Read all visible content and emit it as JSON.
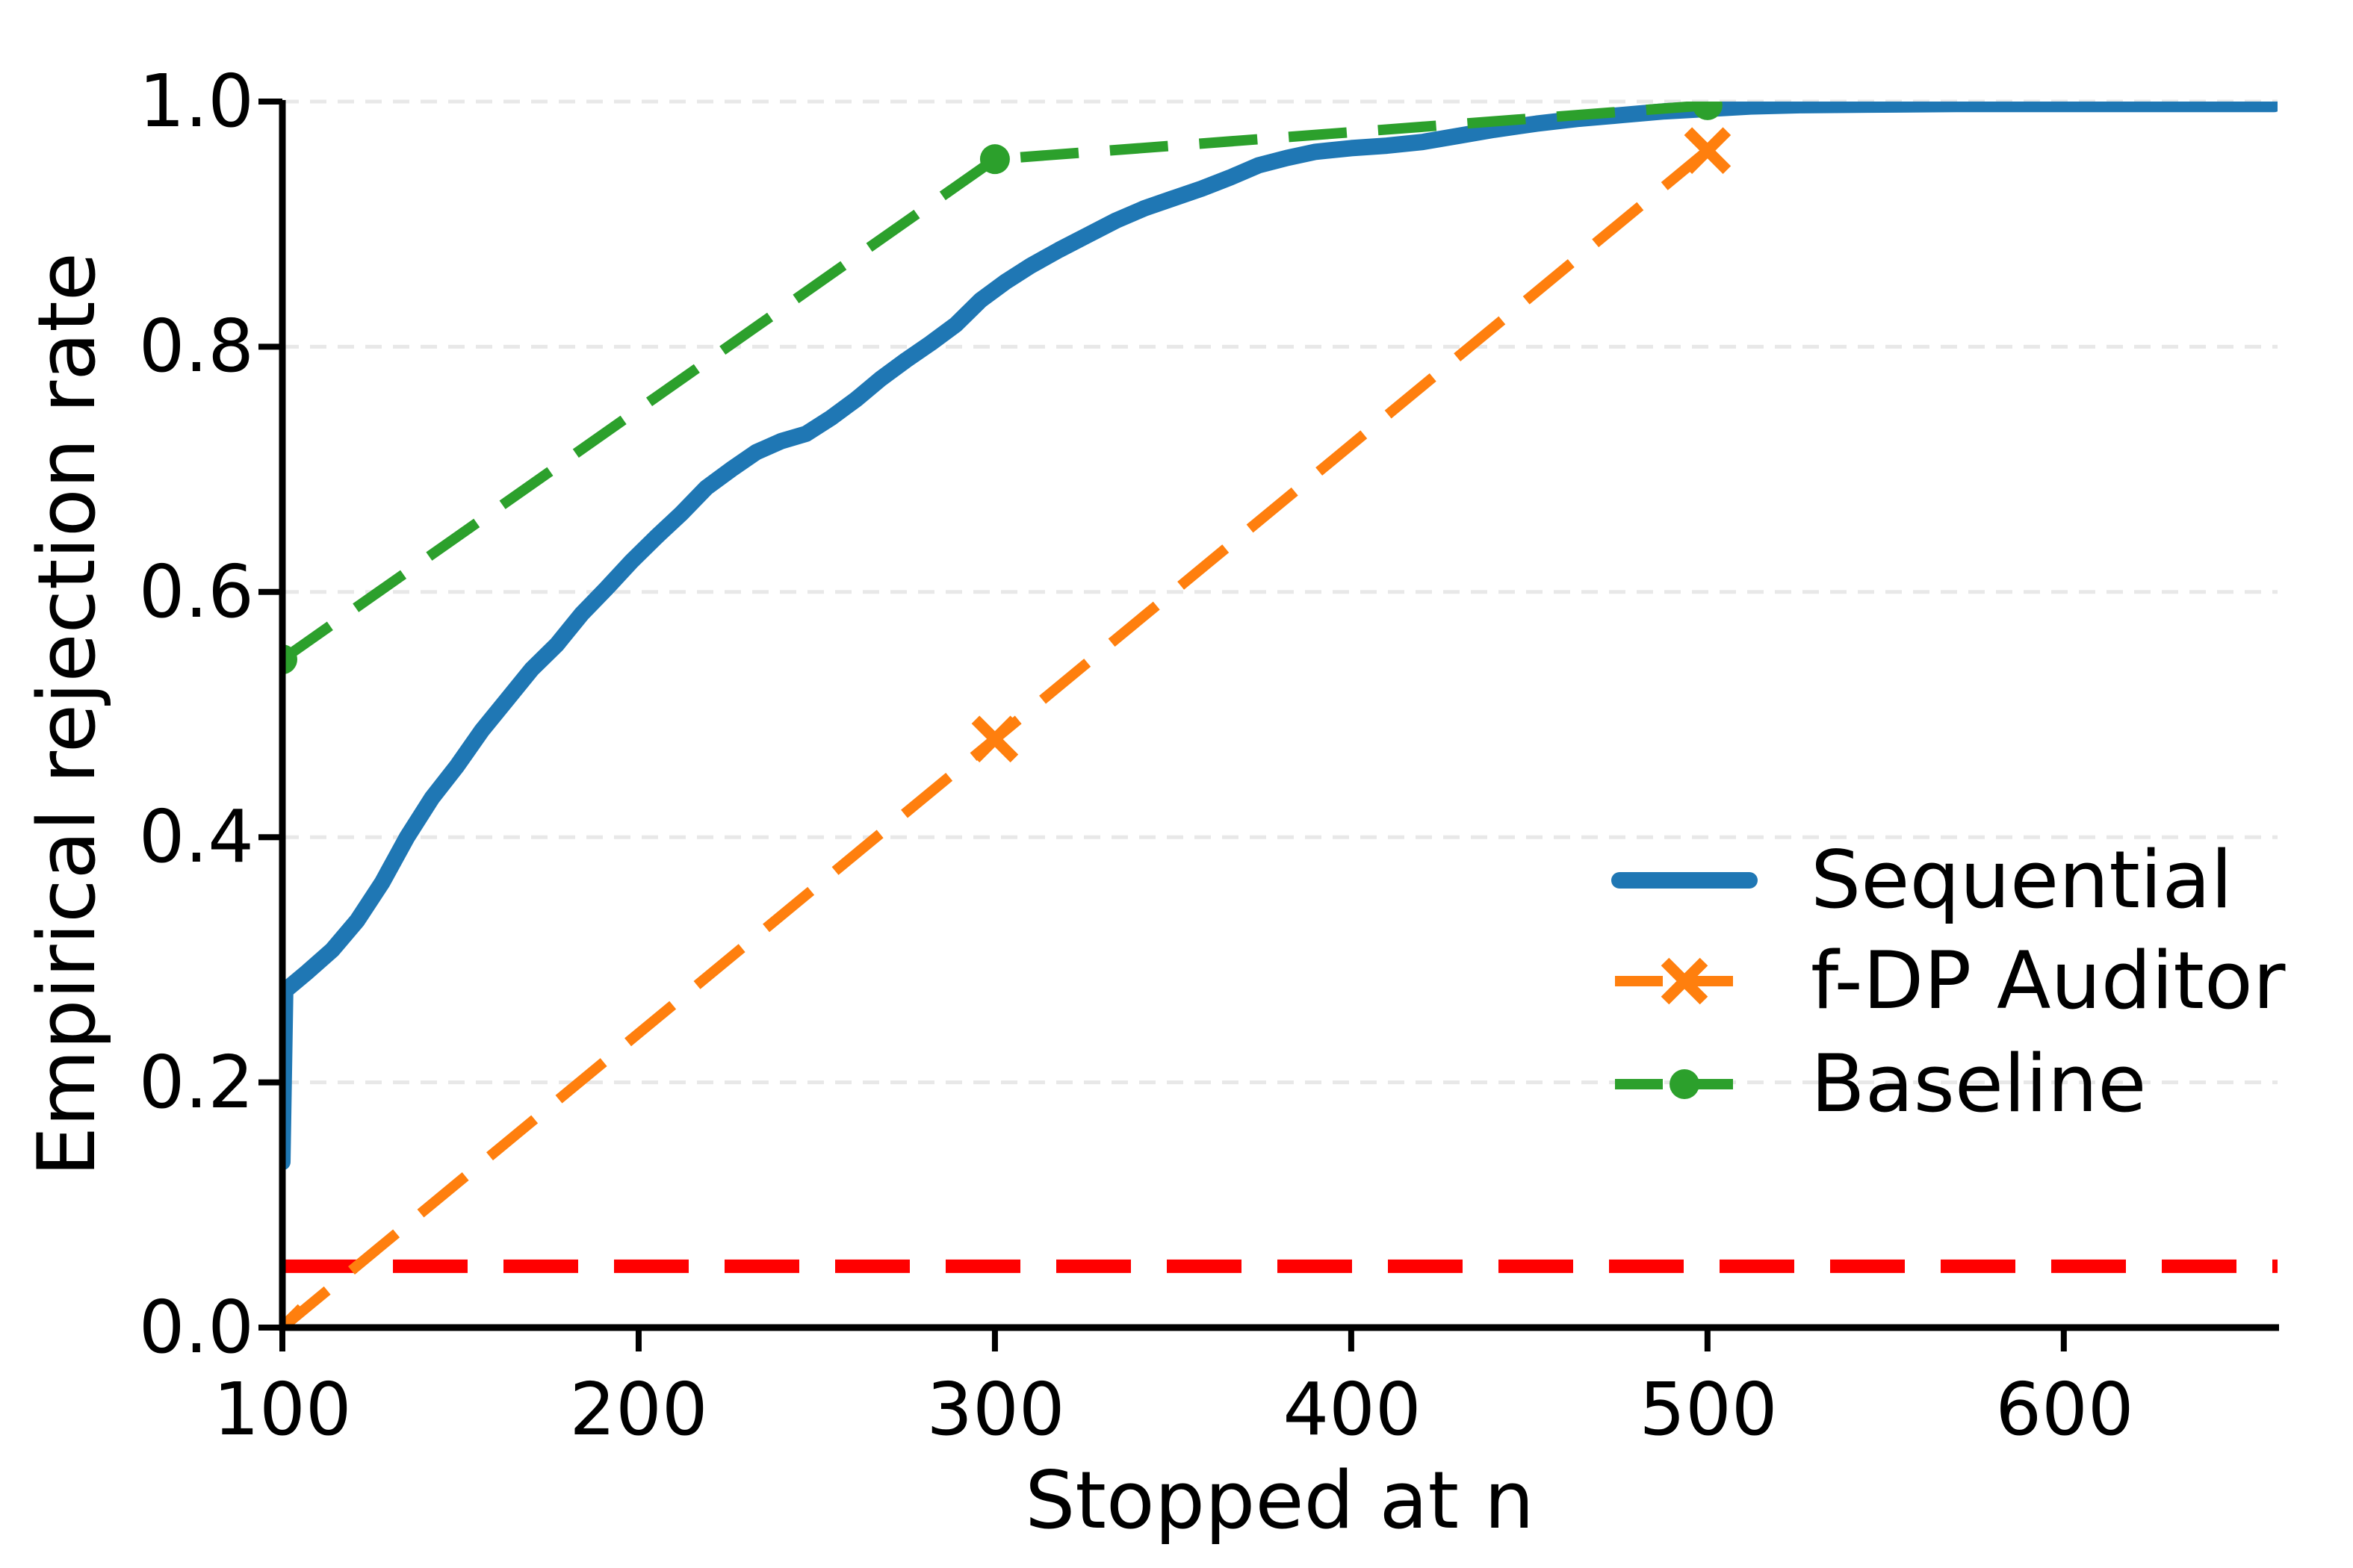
{
  "chart_data": {
    "type": "line",
    "title": "",
    "xlabel": "Stopped at n",
    "ylabel": "Empirical rejection rate",
    "xlim": [
      100,
      660
    ],
    "ylim": [
      0.0,
      1.0
    ],
    "xticks": [
      100,
      200,
      300,
      400,
      500,
      600
    ],
    "yticks": [
      0.0,
      0.2,
      0.4,
      0.6,
      0.8,
      1.0
    ],
    "xtick_labels": [
      "100",
      "200",
      "300",
      "400",
      "500",
      "600"
    ],
    "ytick_labels": [
      "0.0",
      "0.2",
      "0.4",
      "0.6",
      "0.8",
      "1.0"
    ],
    "grid": "horizontal-dashed-light",
    "legend_position": "center-right",
    "legend": [
      "Sequential",
      "f-DP Auditor",
      "Baseline"
    ],
    "series": [
      {
        "name": "Sequential",
        "color": "#1f77b4",
        "style": "solid",
        "linewidth": 22,
        "marker": "none",
        "points": [
          [
            100,
            0.135
          ],
          [
            100.8,
            0.275
          ],
          [
            107,
            0.29
          ],
          [
            114,
            0.308
          ],
          [
            121,
            0.332
          ],
          [
            128,
            0.363
          ],
          [
            135,
            0.4
          ],
          [
            142,
            0.432
          ],
          [
            149,
            0.458
          ],
          [
            156,
            0.487
          ],
          [
            163,
            0.512
          ],
          [
            170,
            0.537
          ],
          [
            177,
            0.557
          ],
          [
            184,
            0.582
          ],
          [
            191,
            0.603
          ],
          [
            198,
            0.625
          ],
          [
            205,
            0.645
          ],
          [
            212,
            0.664
          ],
          [
            219,
            0.685
          ],
          [
            226,
            0.7
          ],
          [
            233,
            0.714
          ],
          [
            240,
            0.723
          ],
          [
            247,
            0.729
          ],
          [
            254,
            0.742
          ],
          [
            261,
            0.757
          ],
          [
            268,
            0.774
          ],
          [
            275,
            0.789
          ],
          [
            282,
            0.803
          ],
          [
            289,
            0.818
          ],
          [
            296,
            0.838
          ],
          [
            303,
            0.853
          ],
          [
            310,
            0.866
          ],
          [
            318,
            0.879
          ],
          [
            326,
            0.891
          ],
          [
            334,
            0.903
          ],
          [
            342,
            0.913
          ],
          [
            350,
            0.921
          ],
          [
            358,
            0.929
          ],
          [
            366,
            0.938
          ],
          [
            374,
            0.948
          ],
          [
            382,
            0.954
          ],
          [
            390,
            0.959
          ],
          [
            400,
            0.962
          ],
          [
            410,
            0.964
          ],
          [
            420,
            0.967
          ],
          [
            430,
            0.972
          ],
          [
            440,
            0.977
          ],
          [
            452,
            0.982
          ],
          [
            464,
            0.986
          ],
          [
            476,
            0.989
          ],
          [
            488,
            0.992
          ],
          [
            500,
            0.994
          ],
          [
            512,
            0.996
          ],
          [
            526,
            0.997
          ],
          [
            545,
            0.9975
          ],
          [
            570,
            0.998
          ],
          [
            610,
            0.998
          ],
          [
            659,
            0.998
          ]
        ]
      },
      {
        "name": "f-DP Auditor",
        "color": "#ff7f0e",
        "style": "dashed",
        "linewidth": 14,
        "marker": "x",
        "points": [
          [
            100,
            0.0
          ],
          [
            300,
            0.48
          ],
          [
            500,
            0.96
          ]
        ]
      },
      {
        "name": "Baseline",
        "color": "#2ca02c",
        "style": "dashed",
        "linewidth": 14,
        "marker": "circle",
        "points": [
          [
            100,
            0.545
          ],
          [
            300,
            0.953
          ],
          [
            500,
            0.997
          ]
        ]
      },
      {
        "name": "significance-threshold",
        "color": "#ff0000",
        "style": "dashed",
        "linewidth": 18,
        "marker": "none",
        "in_legend": false,
        "points": [
          [
            100,
            0.05
          ],
          [
            660,
            0.05
          ]
        ]
      }
    ],
    "colors": {
      "sequential": "#1f77b4",
      "fdp_auditor": "#ff7f0e",
      "baseline": "#2ca02c",
      "threshold": "#ff0000",
      "grid": "#e8e8e8",
      "axis": "#000000"
    }
  }
}
